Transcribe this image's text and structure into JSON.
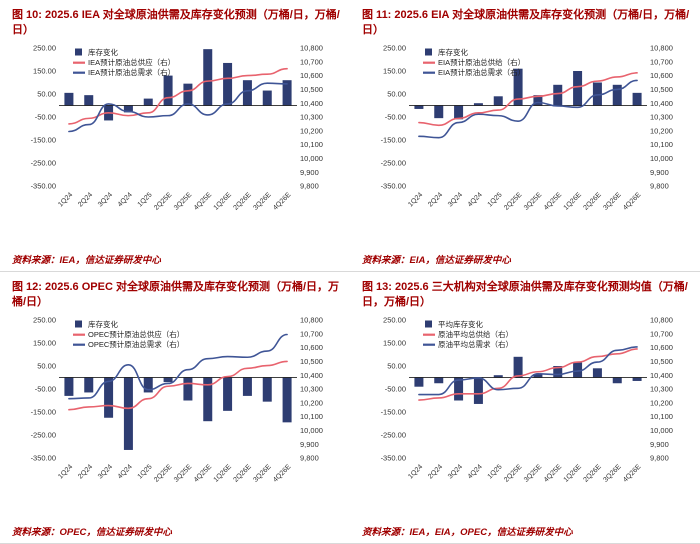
{
  "style": {
    "accent": "#a00000",
    "bar_color": "#2e3d72",
    "supply_color": "#e8636e",
    "demand_color": "#3f5596",
    "axis_text_color": "#333333"
  },
  "chart_data": [
    {
      "type": "combo",
      "title": "图 10: 2025.6 IEA 对全球原油供需及库存变化预测（万桶/日，万桶/日）",
      "source": "资料来源：IEA，信达证券研发中心",
      "categories": [
        "1Q24",
        "2Q24",
        "3Q24",
        "4Q24",
        "1Q25",
        "2Q25E",
        "3Q25E",
        "4Q25E",
        "1Q26E",
        "2Q26E",
        "3Q26E",
        "4Q26E"
      ],
      "y_left": {
        "min": -350,
        "max": 250,
        "ticks": [
          250,
          150,
          50,
          -50,
          -150,
          -250,
          -350
        ]
      },
      "y_right": {
        "min": 9800,
        "max": 10800,
        "ticks": [
          10800,
          10700,
          10600,
          10500,
          10400,
          10300,
          10200,
          10100,
          10000,
          9900,
          9800
        ]
      },
      "series": [
        {
          "name": "库存变化",
          "type": "bar",
          "axis": "left",
          "role": "inventory-bar-series",
          "color": "#2e3d72",
          "values": [
            55,
            45,
            -65,
            -30,
            30,
            130,
            95,
            245,
            185,
            110,
            65,
            110
          ]
        },
        {
          "name": "IEA预计原油总供应（右）",
          "type": "line",
          "axis": "right",
          "role": "supply-line",
          "color": "#e8636e",
          "values": [
            10250,
            10290,
            10330,
            10310,
            10330,
            10440,
            10490,
            10560,
            10580,
            10600,
            10610,
            10650
          ]
        },
        {
          "name": "IEA预计原油总需求（右）",
          "type": "line",
          "axis": "right",
          "role": "demand-line",
          "color": "#3f5596",
          "values": [
            10195,
            10245,
            10395,
            10340,
            10300,
            10310,
            10395,
            10315,
            10395,
            10490,
            10545,
            10540
          ]
        }
      ]
    },
    {
      "type": "combo",
      "title": "图 11: 2025.6 EIA 对全球原油供需及库存变化预测（万桶/日，万桶/日）",
      "source": "资料来源：EIA，信达证券研发中心",
      "categories": [
        "1Q24",
        "2Q24",
        "3Q24",
        "4Q24",
        "1Q25",
        "2Q25E",
        "3Q25E",
        "4Q25E",
        "1Q26E",
        "2Q26E",
        "3Q26E",
        "4Q26E"
      ],
      "y_left": {
        "min": -350,
        "max": 250,
        "ticks": [
          250,
          150,
          50,
          -50,
          -150,
          -250,
          -350
        ]
      },
      "y_right": {
        "min": 9800,
        "max": 10800,
        "ticks": [
          10800,
          10700,
          10600,
          10500,
          10400,
          10300,
          10200,
          10100,
          10000,
          9900,
          9800
        ]
      },
      "series": [
        {
          "name": "库存变化",
          "type": "bar",
          "axis": "left",
          "role": "inventory-bar-series",
          "color": "#2e3d72",
          "values": [
            -15,
            -55,
            -60,
            10,
            40,
            160,
            45,
            90,
            150,
            100,
            90,
            55
          ]
        },
        {
          "name": "EIA预计原油总供给（右）",
          "type": "line",
          "axis": "right",
          "role": "supply-line",
          "color": "#e8636e",
          "values": [
            10260,
            10240,
            10290,
            10330,
            10350,
            10430,
            10450,
            10470,
            10520,
            10560,
            10590,
            10620
          ]
        },
        {
          "name": "EIA预计原油总需求（右）",
          "type": "line",
          "axis": "right",
          "role": "demand-line",
          "color": "#3f5596",
          "values": [
            10160,
            10150,
            10260,
            10320,
            10310,
            10270,
            10405,
            10380,
            10370,
            10460,
            10500,
            10565
          ]
        }
      ]
    },
    {
      "type": "combo",
      "title": "图 12: 2025.6 OPEC 对全球原油供需及库存变化预测（万桶/日，万桶/日）",
      "source": "资料来源：OPEC，信达证券研发中心",
      "categories": [
        "1Q24",
        "2Q24",
        "3Q24",
        "4Q24",
        "1Q25",
        "2Q25E",
        "3Q25E",
        "4Q25E",
        "1Q26E",
        "2Q26E",
        "3Q26E",
        "4Q26E"
      ],
      "y_left": {
        "min": -350,
        "max": 250,
        "ticks": [
          250,
          150,
          50,
          -50,
          -150,
          -250,
          -350
        ]
      },
      "y_right": {
        "min": 9800,
        "max": 10800,
        "ticks": [
          10800,
          10700,
          10600,
          10500,
          10400,
          10300,
          10200,
          10100,
          10000,
          9900,
          9800
        ]
      },
      "series": [
        {
          "name": "库存变化",
          "type": "bar",
          "axis": "left",
          "role": "inventory-bar-series",
          "color": "#2e3d72",
          "values": [
            -80,
            -65,
            -175,
            -315,
            -65,
            -20,
            -100,
            -190,
            -145,
            -80,
            -105,
            -195
          ]
        },
        {
          "name": "OPEC预计原油总供应（右）",
          "type": "line",
          "axis": "right",
          "role": "supply-line",
          "color": "#e8636e",
          "values": [
            10150,
            10170,
            10180,
            10160,
            10230,
            10320,
            10340,
            10330,
            10390,
            10450,
            10470,
            10500
          ]
        },
        {
          "name": "OPEC预计原油总需求（右）",
          "type": "line",
          "axis": "right",
          "role": "demand-line",
          "color": "#3f5596",
          "values": [
            10230,
            10235,
            10355,
            10475,
            10295,
            10340,
            10440,
            10520,
            10535,
            10530,
            10575,
            10695
          ]
        }
      ]
    },
    {
      "type": "combo",
      "title": "图 13: 2025.6 三大机构对全球原油供需及库存变化预测均值（万桶/日，万桶/日）",
      "source": "资料来源：IEA，EIA，OPEC，信达证券研发中心",
      "categories": [
        "1Q24",
        "2Q24",
        "3Q24",
        "4Q24",
        "1Q25",
        "2Q25E",
        "3Q25E",
        "4Q25E",
        "1Q26E",
        "2Q26E",
        "3Q26E",
        "4Q26E"
      ],
      "y_left": {
        "min": -350,
        "max": 250,
        "ticks": [
          250,
          150,
          50,
          -50,
          -150,
          -250,
          -350
        ]
      },
      "y_right": {
        "min": 9800,
        "max": 10800,
        "ticks": [
          10800,
          10700,
          10600,
          10500,
          10400,
          10300,
          10200,
          10100,
          10000,
          9900,
          9800
        ]
      },
      "series": [
        {
          "name": "平均库存变化",
          "type": "bar",
          "axis": "left",
          "role": "inventory-bar-series",
          "color": "#2e3d72",
          "values": [
            -40,
            -25,
            -100,
            -115,
            10,
            90,
            15,
            50,
            65,
            40,
            -25,
            -15
          ]
        },
        {
          "name": "原油平均总供给（右）",
          "type": "line",
          "axis": "right",
          "role": "supply-line",
          "color": "#e8636e",
          "values": [
            10220,
            10235,
            10265,
            10265,
            10305,
            10395,
            10425,
            10455,
            10495,
            10535,
            10555,
            10590
          ]
        },
        {
          "name": "原油平均总需求（右）",
          "type": "line",
          "axis": "right",
          "role": "demand-line",
          "color": "#3f5596",
          "values": [
            10260,
            10260,
            10365,
            10380,
            10295,
            10305,
            10410,
            10405,
            10430,
            10495,
            10580,
            10605
          ]
        }
      ]
    }
  ]
}
